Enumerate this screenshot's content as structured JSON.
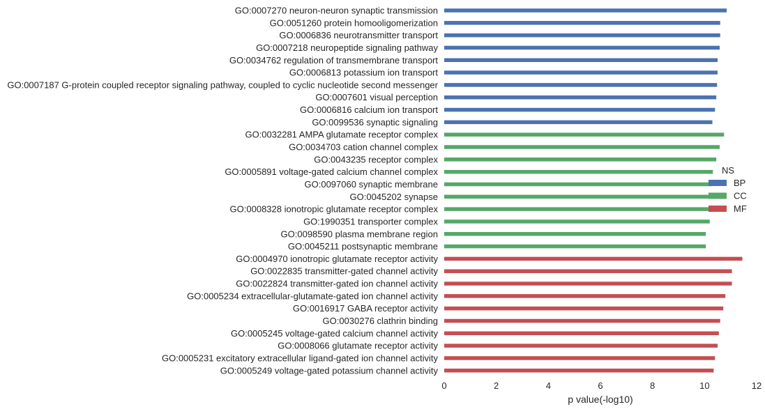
{
  "chart_data": {
    "type": "bar",
    "orientation": "horizontal",
    "categories": [
      "GO:0007270 neuron-neuron synaptic transmission",
      "GO:0051260 protein homooligomerization",
      "GO:0006836 neurotransmitter transport",
      "GO:0007218 neuropeptide signaling pathway",
      "GO:0034762 regulation of transmembrane transport",
      "GO:0006813 potassium ion transport",
      "GO:0007187 G-protein coupled receptor signaling pathway, coupled to cyclic nucleotide second messenger",
      "GO:0007601 visual perception",
      "GO:0006816 calcium ion transport",
      "GO:0099536 synaptic signaling",
      "GO:0032281 AMPA glutamate receptor complex",
      "GO:0034703 cation channel complex",
      "GO:0043235 receptor complex",
      "GO:0005891 voltage-gated calcium channel complex",
      "GO:0097060 synaptic membrane",
      "GO:0045202 synapse",
      "GO:0008328 ionotropic glutamate receptor complex",
      "GO:1990351 transporter complex",
      "GO:0098590 plasma membrane region",
      "GO:0045211 postsynaptic membrane",
      "GO:0004970 ionotropic glutamate receptor activity",
      "GO:0022835 transmitter-gated channel activity",
      "GO:0022824 transmitter-gated ion channel activity",
      "GO:0005234 extracellular-glutamate-gated ion channel activity",
      "GO:0016917 GABA receptor activity",
      "GO:0030276 clathrin binding",
      "GO:0005245 voltage-gated calcium channel activity",
      "GO:0008066 glutamate receptor activity",
      "GO:0005231 excitatory extracellular ligand-gated ion channel activity",
      "GO:0005249 voltage-gated potassium channel activity"
    ],
    "series": [
      {
        "name": "BP",
        "color": "#4c72b0",
        "values": [
          10.85,
          10.6,
          10.6,
          10.58,
          10.5,
          10.5,
          10.48,
          10.45,
          10.4,
          10.3,
          null,
          null,
          null,
          null,
          null,
          null,
          null,
          null,
          null,
          null,
          null,
          null,
          null,
          null,
          null,
          null,
          null,
          null,
          null,
          null
        ]
      },
      {
        "name": "CC",
        "color": "#55a868",
        "values": [
          null,
          null,
          null,
          null,
          null,
          null,
          null,
          null,
          null,
          null,
          10.75,
          10.58,
          10.45,
          10.32,
          10.3,
          10.22,
          10.2,
          10.2,
          10.05,
          10.05,
          null,
          null,
          null,
          null,
          null,
          null,
          null,
          null,
          null,
          null
        ]
      },
      {
        "name": "MF",
        "color": "#c44e52",
        "values": [
          null,
          null,
          null,
          null,
          null,
          null,
          null,
          null,
          null,
          null,
          null,
          null,
          null,
          null,
          null,
          null,
          null,
          null,
          null,
          null,
          11.45,
          11.05,
          11.05,
          10.8,
          10.72,
          10.6,
          10.55,
          10.5,
          10.4,
          10.35
        ]
      }
    ],
    "xlabel": "p value(-log10)",
    "ylabel": "",
    "xlim": [
      0,
      12
    ],
    "xticks": [
      0,
      2,
      4,
      6,
      8,
      10,
      12
    ],
    "grid": false,
    "legend": {
      "title": "NS",
      "position": "right"
    }
  }
}
